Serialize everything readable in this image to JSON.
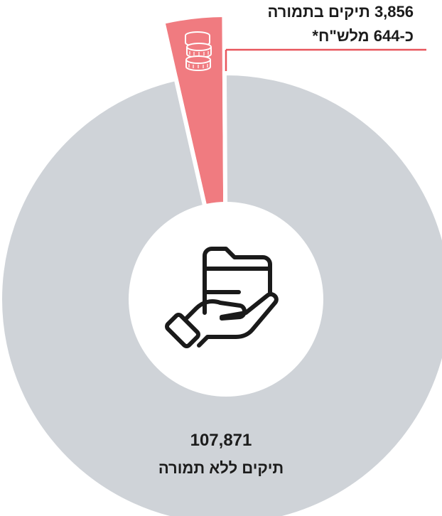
{
  "chart_data": {
    "type": "pie",
    "slices": [
      {
        "value": 3856,
        "value_label": "3,856",
        "label": "תיקים בתמורה",
        "note": "כ-644 מלש\"ח*",
        "color": "#f07b80"
      },
      {
        "value": 107871,
        "value_label": "107,871",
        "label": "תיקים ללא תמורה",
        "color": "#cfd3d8"
      }
    ]
  },
  "icons": {
    "center": "hand-holding-folder-icon",
    "small_slice": "coin-stack-icon"
  }
}
